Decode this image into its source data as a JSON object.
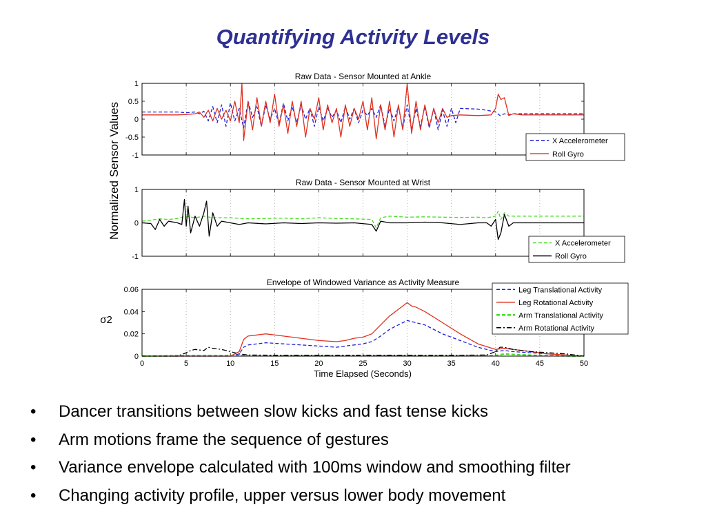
{
  "slide": {
    "title": "Quantifying Activity Levels",
    "bullet_glyph": "•",
    "bullets": [
      "Dancer transitions between slow kicks and fast tense kicks",
      "Arm motions frame the sequence of gestures",
      "Variance envelope calculated with 100ms window and smoothing filter",
      "Changing activity profile, upper versus lower body movement"
    ]
  },
  "figure_labels": {
    "shared_ylabel": "Normalized Sensor Values",
    "shared_xlabel": "Time Elapsed (Seconds)"
  },
  "chart_data": [
    {
      "type": "line",
      "title": "Raw Data - Sensor Mounted at Ankle",
      "xlim": [
        0,
        50
      ],
      "ylim": [
        -1,
        1
      ],
      "yticks": [
        "1",
        "0.5",
        "0",
        "-0.5",
        "-1"
      ],
      "ytick_values": [
        1,
        0.5,
        0,
        -0.5,
        -1
      ],
      "xgrid": [
        5,
        10,
        15,
        20,
        25,
        30,
        35,
        40,
        45
      ],
      "legend_position": "lower-right",
      "series": [
        {
          "name": "X Accelerometer",
          "color": "#1f1fd6",
          "style": "dashed",
          "x": [
            0,
            2,
            4,
            5,
            6,
            6.5,
            7,
            7.5,
            8,
            8.5,
            9,
            9.5,
            10,
            10.5,
            11,
            11.5,
            12,
            12.5,
            13,
            13.5,
            14,
            14.5,
            15,
            15.5,
            16,
            16.5,
            17,
            17.5,
            18,
            18.5,
            19,
            19.5,
            20,
            20.5,
            21,
            21.5,
            22,
            22.5,
            23,
            23.5,
            24,
            24.5,
            25,
            25.5,
            26,
            26.5,
            27,
            27.5,
            28,
            28.5,
            29,
            29.5,
            30,
            30.5,
            31,
            31.5,
            32,
            32.5,
            33,
            33.5,
            34,
            34.5,
            35,
            35.5,
            36,
            38,
            39,
            40,
            40.5,
            41,
            41.5,
            42,
            44,
            46,
            48,
            50
          ],
          "y": [
            0.2,
            0.2,
            0.2,
            0.18,
            0.2,
            0.15,
            0.22,
            -0.05,
            0.35,
            -0.1,
            0.4,
            -0.2,
            0.45,
            -0.05,
            0.3,
            -0.25,
            0.5,
            0.05,
            0.35,
            -0.2,
            0.4,
            0.0,
            0.3,
            -0.15,
            0.45,
            -0.05,
            0.35,
            -0.1,
            0.4,
            0.0,
            0.3,
            -0.2,
            0.35,
            -0.05,
            0.3,
            0.05,
            0.25,
            -0.1,
            0.35,
            0.0,
            0.3,
            -0.1,
            0.25,
            0.1,
            0.3,
            0.05,
            0.4,
            -0.2,
            0.3,
            -0.05,
            0.35,
            -0.25,
            0.4,
            -0.3,
            0.3,
            -0.2,
            0.35,
            -0.25,
            0.3,
            -0.3,
            0.25,
            -0.2,
            0.3,
            -0.1,
            0.3,
            0.28,
            0.25,
            0.2,
            0.1,
            0.15,
            0.12,
            0.15,
            0.15,
            0.15,
            0.15,
            0.15
          ]
        },
        {
          "name": "Roll Gyro",
          "color": "#e0301e",
          "style": "solid",
          "x": [
            0,
            2,
            4,
            5,
            6,
            6.5,
            7,
            7.5,
            8,
            8.5,
            9,
            9.5,
            10,
            10.5,
            11,
            11.3,
            11.5,
            12,
            12.5,
            13,
            13.5,
            14,
            14.5,
            15,
            15.5,
            16,
            16.5,
            17,
            17.5,
            18,
            18.5,
            19,
            19.5,
            20,
            20.5,
            21,
            21.5,
            22,
            22.5,
            23,
            23.5,
            24,
            24.5,
            25,
            25.5,
            26,
            26.5,
            27,
            27.5,
            28,
            28.5,
            29,
            29.5,
            30,
            30.5,
            31,
            31.5,
            32,
            32.5,
            33,
            33.5,
            34,
            34.5,
            35,
            36,
            38,
            39.5,
            40,
            40.3,
            40.6,
            41,
            41.5,
            42,
            43,
            44,
            46,
            48,
            50
          ],
          "y": [
            0.12,
            0.12,
            0.12,
            0.13,
            0.15,
            0.2,
            0.05,
            0.25,
            -0.05,
            0.3,
            0.0,
            0.25,
            -0.05,
            0.5,
            -0.1,
            1.0,
            -0.6,
            0.5,
            -0.3,
            0.6,
            -0.2,
            0.5,
            -0.1,
            0.7,
            -0.2,
            0.4,
            -0.4,
            0.5,
            -0.2,
            0.5,
            -0.5,
            0.3,
            0.0,
            0.6,
            -0.3,
            0.4,
            -0.1,
            0.3,
            -0.5,
            0.4,
            -0.2,
            0.3,
            0.0,
            0.5,
            -0.3,
            0.6,
            -0.55,
            0.4,
            -0.3,
            0.5,
            -0.5,
            0.4,
            -0.3,
            1.0,
            -0.4,
            0.5,
            -0.3,
            0.4,
            -0.2,
            0.3,
            -0.1,
            0.3,
            0.05,
            0.1,
            0.12,
            0.1,
            0.12,
            0.3,
            0.7,
            0.55,
            0.6,
            0.1,
            0.15,
            0.12,
            0.12,
            0.12,
            0.12,
            0.12
          ]
        }
      ]
    },
    {
      "type": "line",
      "title": "Raw Data - Sensor Mounted at Wrist",
      "xlim": [
        0,
        50
      ],
      "ylim": [
        -1,
        1
      ],
      "yticks": [
        "1",
        "0",
        "-1"
      ],
      "ytick_values": [
        1,
        0,
        -1
      ],
      "xgrid": [
        5,
        10,
        15,
        20,
        25,
        30,
        35,
        40,
        45
      ],
      "legend_position": "lower-right",
      "series": [
        {
          "name": "X Accelerometer",
          "color": "#44dd22",
          "style": "dashed",
          "x": [
            0,
            1,
            2,
            3,
            4,
            5,
            6,
            7,
            8,
            10,
            12,
            14,
            16,
            18,
            20,
            22,
            24,
            26,
            26.5,
            27,
            28,
            30,
            32,
            34,
            36,
            38,
            39,
            40,
            40.3,
            40.6,
            41,
            41.5,
            42,
            44,
            46,
            48,
            50
          ],
          "y": [
            0.05,
            0.08,
            0.12,
            0.1,
            0.13,
            0.2,
            0.15,
            0.2,
            0.15,
            0.15,
            0.12,
            0.13,
            0.14,
            0.12,
            0.15,
            0.13,
            0.12,
            0.1,
            -0.15,
            0.15,
            0.2,
            0.17,
            0.18,
            0.17,
            0.16,
            0.17,
            0.15,
            0.2,
            0.35,
            0.1,
            0.3,
            0.2,
            0.2,
            0.2,
            0.2,
            0.2,
            0.2
          ]
        },
        {
          "name": "Roll Gyro",
          "color": "#000000",
          "style": "solid",
          "x": [
            0,
            1,
            1.5,
            2,
            2.5,
            3,
            4,
            4.5,
            4.8,
            5,
            5.2,
            5.5,
            6,
            6.5,
            7,
            7.3,
            7.6,
            8,
            8.5,
            9,
            10,
            11,
            12,
            14,
            16,
            18,
            20,
            22,
            24,
            26,
            26.5,
            27,
            28,
            30,
            32,
            34,
            36,
            38,
            39,
            39.5,
            40,
            40.3,
            40.6,
            41,
            41.5,
            42,
            44,
            46,
            48,
            50
          ],
          "y": [
            0,
            -0.02,
            -0.2,
            0.1,
            -0.1,
            0.05,
            0.0,
            -0.05,
            0.7,
            -0.1,
            0.5,
            -0.3,
            0.2,
            -0.1,
            0.3,
            0.65,
            -0.4,
            0.3,
            -0.1,
            0.05,
            0.0,
            -0.05,
            0.0,
            -0.03,
            0.0,
            -0.02,
            0.0,
            -0.01,
            0.0,
            -0.05,
            -0.25,
            0.05,
            0.0,
            0.0,
            0.02,
            0.0,
            -0.05,
            0.0,
            0.0,
            -0.1,
            0.1,
            -0.5,
            -0.3,
            0.25,
            -0.1,
            0.0,
            0.0,
            0.0,
            0.0,
            0.0
          ]
        }
      ]
    },
    {
      "type": "line",
      "title": "Envelope of Windowed Variance as Activity Measure",
      "ylabel": "σ2",
      "xlabel": "Time Elapsed (Seconds)",
      "xlim": [
        0,
        50
      ],
      "ylim": [
        0,
        0.06
      ],
      "yticks": [
        "0.06",
        "0.04",
        "0.02",
        "0"
      ],
      "ytick_values": [
        0.06,
        0.04,
        0.02,
        0
      ],
      "xticks": [
        "0",
        "5",
        "10",
        "15",
        "20",
        "25",
        "30",
        "35",
        "40",
        "45",
        "50"
      ],
      "xtick_values": [
        0,
        5,
        10,
        15,
        20,
        25,
        30,
        35,
        40,
        45,
        50
      ],
      "xgrid": [
        5,
        10,
        15,
        20,
        25,
        30,
        35,
        40,
        45
      ],
      "legend_position": "top-right",
      "series": [
        {
          "name": "Leg Translational Activity",
          "color": "#1f1fd6",
          "style": "dashed",
          "x": [
            0,
            5,
            10,
            11,
            11.5,
            12,
            13,
            14,
            16,
            18,
            20,
            22,
            23,
            24,
            25,
            26,
            27,
            28,
            29,
            30,
            31,
            32,
            34,
            36,
            38,
            40,
            41,
            42,
            44,
            46,
            48,
            50
          ],
          "y": [
            0,
            0,
            0,
            0.002,
            0.008,
            0.01,
            0.011,
            0.012,
            0.011,
            0.01,
            0.009,
            0.008,
            0.009,
            0.01,
            0.011,
            0.013,
            0.018,
            0.024,
            0.028,
            0.032,
            0.03,
            0.028,
            0.02,
            0.014,
            0.008,
            0.004,
            0.005,
            0.004,
            0.003,
            0.002,
            0.001,
            0.0
          ]
        },
        {
          "name": "Leg Rotational Activity",
          "color": "#e0301e",
          "style": "solid",
          "x": [
            0,
            5,
            10,
            11,
            11.5,
            12,
            13,
            14,
            16,
            18,
            20,
            22,
            23,
            24,
            25,
            26,
            27,
            28,
            29,
            30,
            30.5,
            31,
            32,
            34,
            36,
            38,
            40,
            41,
            42,
            44,
            46,
            48,
            50
          ],
          "y": [
            0,
            0,
            0,
            0.004,
            0.015,
            0.018,
            0.019,
            0.02,
            0.018,
            0.016,
            0.014,
            0.013,
            0.014,
            0.016,
            0.017,
            0.02,
            0.028,
            0.036,
            0.042,
            0.048,
            0.045,
            0.044,
            0.04,
            0.03,
            0.02,
            0.011,
            0.006,
            0.007,
            0.006,
            0.004,
            0.002,
            0.001,
            0.0
          ]
        },
        {
          "name": "Arm Translational Activity",
          "color": "#44dd22",
          "style": "dashed",
          "x": [
            0,
            5,
            10,
            15,
            20,
            25,
            30,
            35,
            40,
            41,
            42,
            45,
            50
          ],
          "y": [
            0,
            0.0005,
            0.0005,
            0.0003,
            0.0003,
            0.0005,
            0.0003,
            0.0003,
            0.0005,
            0.002,
            0.0015,
            0.0005,
            0.0
          ]
        },
        {
          "name": "Arm Rotational Activity",
          "color": "#000000",
          "style": "dashdot",
          "x": [
            0,
            4,
            5,
            5.5,
            6,
            7,
            7.5,
            8,
            9,
            10,
            11,
            12,
            15,
            20,
            25,
            30,
            35,
            39,
            40,
            40.5,
            41,
            42,
            44,
            46,
            48,
            50
          ],
          "y": [
            0,
            0,
            0.003,
            0.005,
            0.006,
            0.005,
            0.008,
            0.007,
            0.006,
            0.004,
            0.002,
            0.001,
            0.0008,
            0.0008,
            0.0008,
            0.0008,
            0.0008,
            0.001,
            0.004,
            0.008,
            0.008,
            0.006,
            0.004,
            0.003,
            0.002,
            0.0
          ]
        }
      ]
    }
  ]
}
